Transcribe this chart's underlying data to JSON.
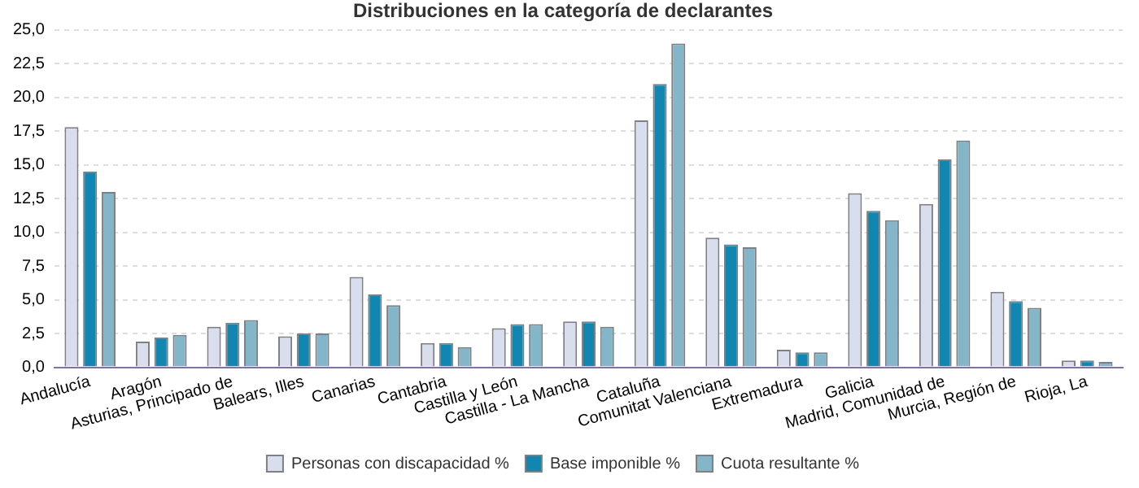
{
  "chart_data": {
    "type": "bar",
    "title": "Distribuciones en la categoría de declarantes",
    "categories": [
      "Andalucía",
      "Aragón",
      "Asturias, Principado de",
      "Balears, Illes",
      "Canarias",
      "Cantabria",
      "Castilla y León",
      "Castilla - La Mancha",
      "Cataluña",
      "Comunitat Valenciana",
      "Extremadura",
      "Galicia",
      "Madrid, Comunidad de",
      "Murcia, Región de",
      "Rioja, La"
    ],
    "series": [
      {
        "name": "Personas con discapacidad %",
        "color": "#d9deee",
        "values": [
          17.8,
          1.9,
          3.0,
          2.3,
          6.7,
          1.8,
          2.9,
          3.4,
          18.3,
          9.6,
          1.3,
          12.9,
          12.1,
          5.6,
          0.5
        ]
      },
      {
        "name": "Base imponible %",
        "color": "#1186b1",
        "values": [
          14.5,
          2.2,
          3.3,
          2.5,
          5.4,
          1.8,
          3.2,
          3.4,
          21.0,
          9.1,
          1.1,
          11.6,
          15.4,
          4.9,
          0.5
        ]
      },
      {
        "name": "Cuota resultante %",
        "color": "#82b6c8",
        "values": [
          13.0,
          2.4,
          3.5,
          2.5,
          4.6,
          1.5,
          3.2,
          3.0,
          24.0,
          8.9,
          1.1,
          10.9,
          16.8,
          4.4,
          0.4
        ]
      }
    ],
    "ylim": [
      0,
      25
    ],
    "yticks": [
      {
        "value": 0,
        "label": "0,0"
      },
      {
        "value": 2.5,
        "label": "2,5"
      },
      {
        "value": 5,
        "label": "5,0"
      },
      {
        "value": 7.5,
        "label": "7,5"
      },
      {
        "value": 10,
        "label": "10,0"
      },
      {
        "value": 12.5,
        "label": "12,5"
      },
      {
        "value": 15,
        "label": "15,0"
      },
      {
        "value": 17.5,
        "label": "17,5"
      },
      {
        "value": 20,
        "label": "20,0"
      },
      {
        "value": 22.5,
        "label": "22,5"
      },
      {
        "value": 25,
        "label": "25,0"
      }
    ],
    "grid": "y",
    "legend": "bottom"
  }
}
